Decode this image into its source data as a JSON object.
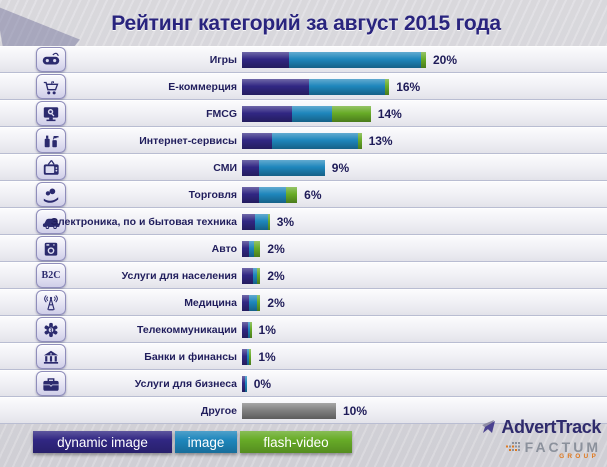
{
  "title": "Рейтинг категорий за август 2015 года",
  "chart_data": {
    "type": "bar",
    "orientation": "horizontal",
    "stacked": true,
    "value_unit": "percent",
    "series": [
      "dynamic image",
      "image",
      "flash-video"
    ],
    "series_colors": [
      "#312783",
      "#1e86bc",
      "#67ab27"
    ],
    "rows": [
      {
        "label": "Игры",
        "icon": "gamepad-icon",
        "total": 20,
        "total_label": "20%",
        "values": [
          5.1,
          14.4,
          0.5
        ]
      },
      {
        "label": "Е-коммерция",
        "icon": "ecommerce-cart-icon",
        "total": 16,
        "total_label": "16%",
        "values": [
          7.3,
          8.2,
          0.5
        ]
      },
      {
        "label": "FMCG",
        "icon": "monitor-search-icon",
        "total": 14,
        "total_label": "14%",
        "values": [
          5.4,
          4.4,
          4.2
        ]
      },
      {
        "label": "Интернет-сервисы",
        "icon": "fmcg-products-icon",
        "total": 13,
        "total_label": "13%",
        "values": [
          3.3,
          9.3,
          0.4
        ]
      },
      {
        "label": "СМИ",
        "icon": "tv-icon",
        "total": 9,
        "total_label": "9%",
        "values": [
          1.8,
          7.2,
          0
        ]
      },
      {
        "label": "Торговля",
        "icon": "hand-money-icon",
        "total": 6,
        "total_label": "6%",
        "values": [
          1.8,
          3.0,
          1.2
        ]
      },
      {
        "label": "Электроника, по и бытовая техника",
        "icon": "car-icon",
        "total": 3,
        "total_label": "3%",
        "values": [
          1.4,
          1.4,
          0.2
        ]
      },
      {
        "label": "Авто",
        "icon": "washing-machine-icon",
        "total": 2,
        "total_label": "2%",
        "values": [
          0.8,
          0.5,
          0.7
        ]
      },
      {
        "label": "Услуги для населения",
        "icon": "b2c-icon",
        "total": 2,
        "total_label": "2%",
        "values": [
          1.2,
          0.4,
          0.4
        ]
      },
      {
        "label": "Медицина",
        "icon": "antenna-icon",
        "total": 2,
        "total_label": "2%",
        "values": [
          0.8,
          0.8,
          0.4
        ]
      },
      {
        "label": "Телекоммуникации",
        "icon": "medical-star-icon",
        "total": 1,
        "total_label": "1%",
        "values": [
          0.6,
          0.2,
          0.2
        ]
      },
      {
        "label": "Банки и финансы",
        "icon": "bank-icon",
        "total": 1,
        "total_label": "1%",
        "values": [
          0.5,
          0.3,
          0.2
        ]
      },
      {
        "label": "Услуги для бизнеса",
        "icon": "briefcase-icon",
        "total": 0,
        "total_label": "0%",
        "values": [
          0.3,
          0.2,
          0
        ]
      },
      {
        "label": "Другое",
        "icon": null,
        "total": 10,
        "total_label": "10%",
        "values": null,
        "other_value": 10,
        "other_color": "#808080"
      }
    ]
  },
  "legend": [
    {
      "label": "dynamic image",
      "color": "#312783"
    },
    {
      "label": "image",
      "color": "#1e86bc"
    },
    {
      "label": "flash-video",
      "color": "#67ab27"
    }
  ],
  "footer": {
    "advert_track": "AdvertTrack",
    "factum": "FACTUM",
    "group": "GROUP"
  }
}
